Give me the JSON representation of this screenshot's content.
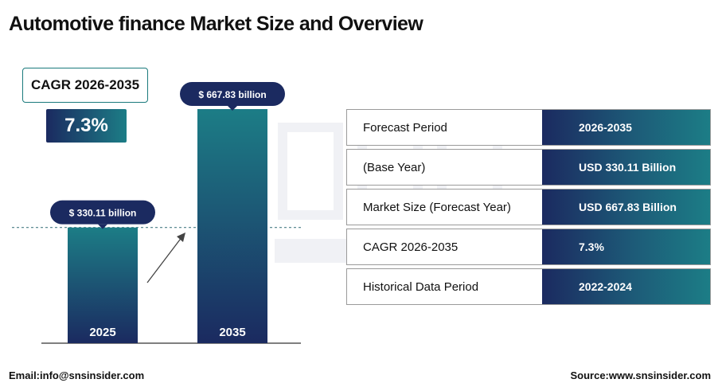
{
  "title": "Automotive finance Market Size and Overview",
  "cagr": {
    "label": "CAGR 2026-2035",
    "value": "7.3%"
  },
  "chart_data": {
    "type": "bar",
    "categories": [
      "2025",
      "2035"
    ],
    "values": [
      330.11,
      667.83
    ],
    "value_labels": [
      "$ 330.11 billion",
      "$ 667.83 billion"
    ],
    "unit": "USD billion",
    "reference_line": "dashed at 2025 level",
    "trend_arrow": true
  },
  "info_table": [
    {
      "label": "Forecast Period",
      "value": "2026-2035"
    },
    {
      "label": "(Base Year)",
      "value": "USD 330.11 Billion"
    },
    {
      "label": "Market Size (Forecast Year)",
      "value": "USD 667.83 Billion"
    },
    {
      "label": "CAGR 2026-2035",
      "value": "7.3%"
    },
    {
      "label": "Historical Data Period",
      "value": "2022-2024"
    }
  ],
  "footer": {
    "email": "Email:info@snsinsider.com",
    "source": "Source:www.snsinsider.com"
  },
  "colors": {
    "navy": "#1b2a60",
    "teal": "#1c7d86",
    "text": "#111111"
  }
}
